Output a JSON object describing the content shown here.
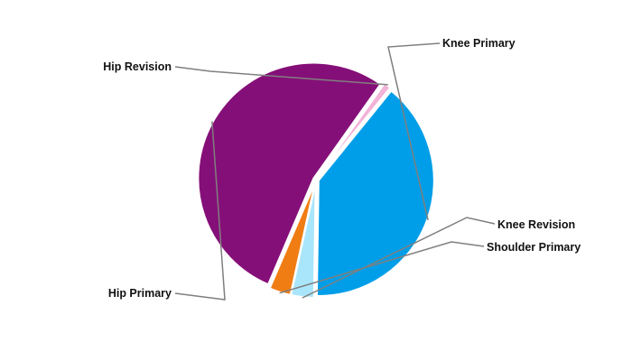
{
  "chart_data": {
    "type": "pie",
    "title": "",
    "legend": "none",
    "slices": [
      {
        "label": "Knee Primary",
        "value": 39.4,
        "color": "#009ee8"
      },
      {
        "label": "Knee Revision",
        "value": 3.2,
        "color": "#a9e6fc"
      },
      {
        "label": "Shoulder Primary",
        "value": 3.0,
        "color": "#f07d14"
      },
      {
        "label": "Hip Primary",
        "value": 53.4,
        "color": "#850f78"
      },
      {
        "label": "Hip Revision",
        "value": 1.0,
        "color": "#f2b3d8"
      }
    ]
  }
}
